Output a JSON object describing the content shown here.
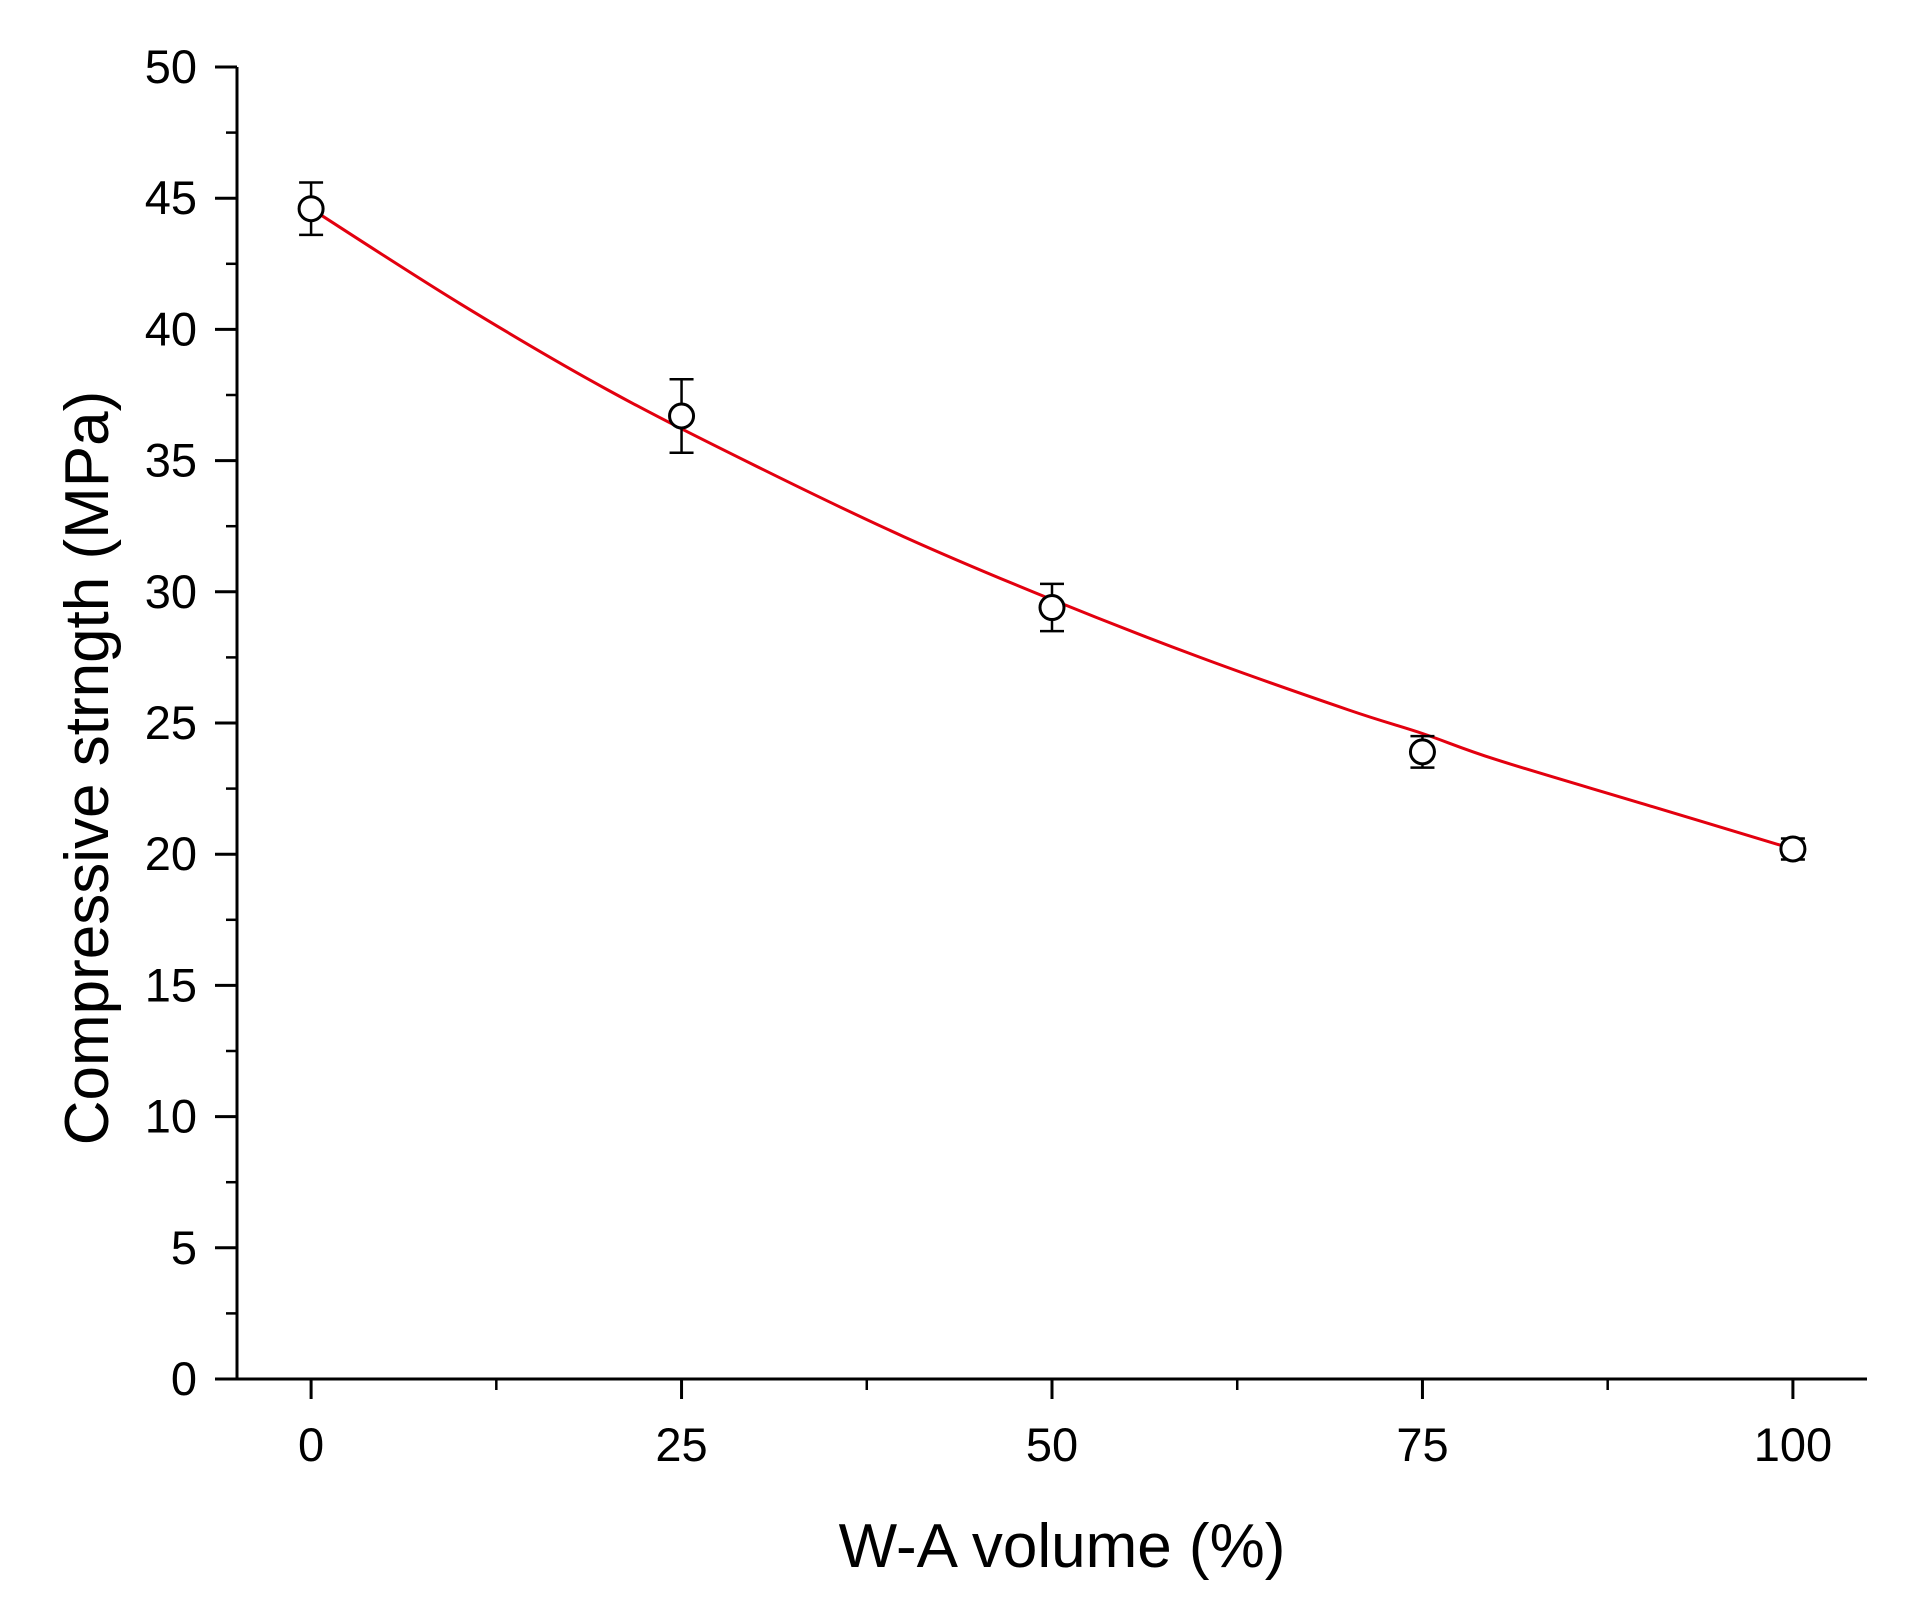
{
  "chart_data": {
    "type": "scatter",
    "xlabel": "W-A volume (%)",
    "ylabel": "Compressive strngth (MPa)",
    "xlim": [
      -5,
      105
    ],
    "ylim": [
      0,
      50
    ],
    "xticks": [
      0,
      25,
      50,
      75,
      100
    ],
    "xtick_labels": [
      "0",
      "25",
      "50",
      "75",
      "100"
    ],
    "yticks": [
      0,
      5,
      10,
      15,
      20,
      25,
      30,
      35,
      40,
      45,
      50
    ],
    "ytick_labels": [
      "0",
      "5",
      "10",
      "15",
      "20",
      "25",
      "30",
      "35",
      "40",
      "45",
      "50"
    ],
    "grid": false,
    "legend": "none",
    "series": [
      {
        "marker": "open-circle",
        "color": "#000000",
        "x": [
          0,
          25,
          50,
          75,
          100
        ],
        "y": [
          44.6,
          36.7,
          29.4,
          23.9,
          20.2
        ],
        "error": [
          1.0,
          1.4,
          0.9,
          0.6,
          0.4
        ]
      }
    ],
    "fit": {
      "type": "exponential-decay",
      "color": "#e3000f",
      "x": [
        0,
        10,
        20,
        30,
        40,
        50,
        60,
        70,
        75,
        80,
        90,
        100
      ],
      "y": [
        44.6,
        41.0,
        37.7,
        34.8,
        32.1,
        29.7,
        27.5,
        25.5,
        24.6,
        23.6,
        21.9,
        20.2
      ]
    }
  }
}
